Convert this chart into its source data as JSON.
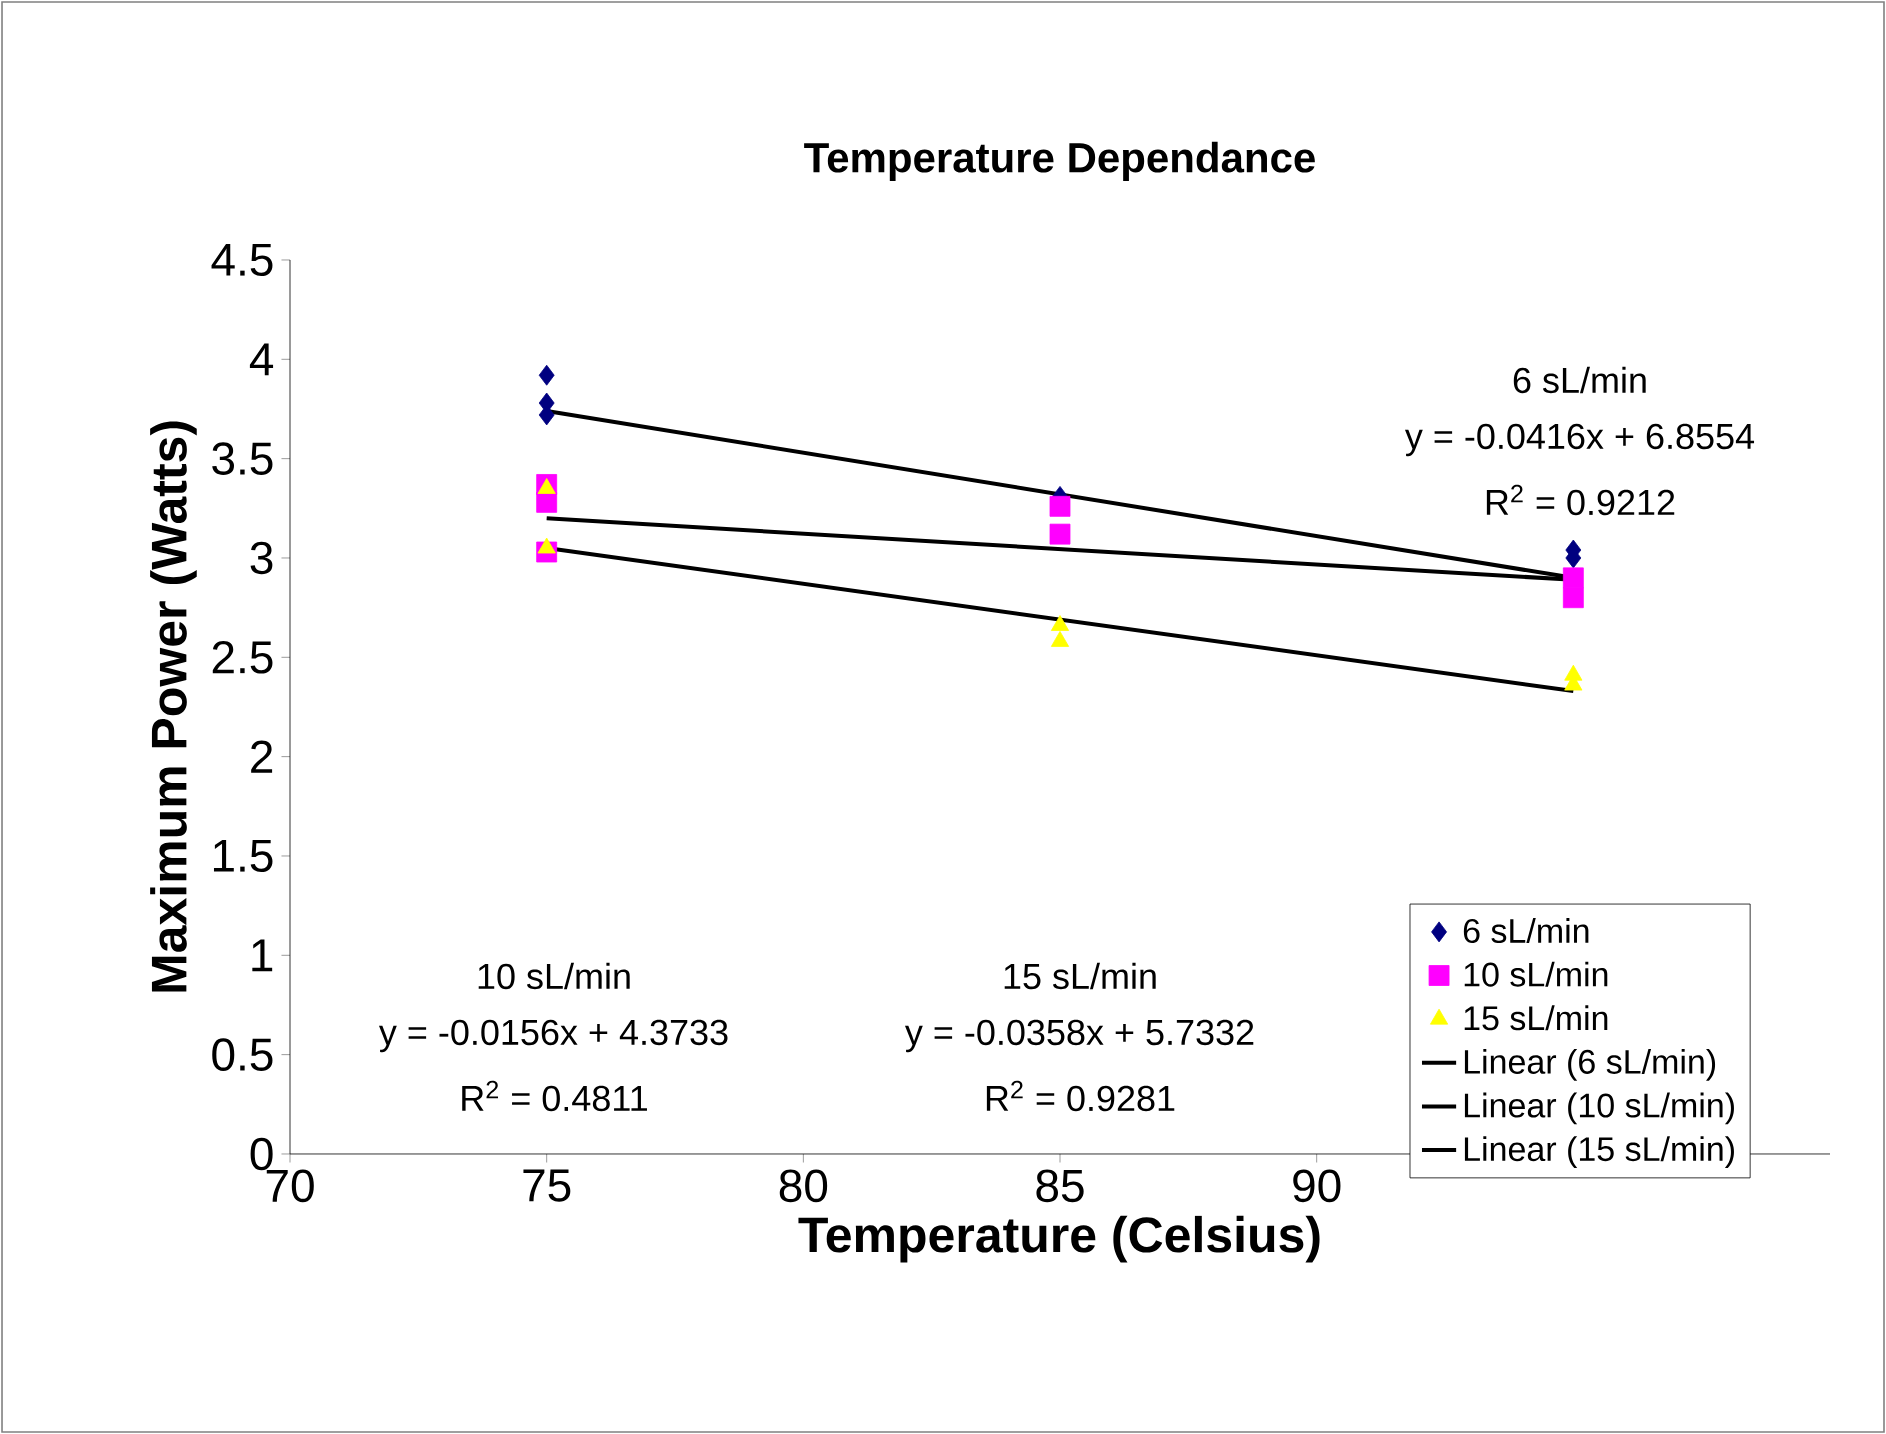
{
  "chart_data": {
    "type": "scatter",
    "title": "Temperature Dependance",
    "xlabel": "Temperature (Celsius)",
    "ylabel": "Maximum Power (Watts)",
    "xlim": [
      70,
      100
    ],
    "xticks": [
      70,
      75,
      80,
      85,
      90
    ],
    "ylim": [
      0,
      4.5
    ],
    "yticks": [
      0,
      0.5,
      1,
      1.5,
      2,
      2.5,
      3,
      3.5,
      4,
      4.5
    ],
    "grid": false,
    "legend": "right",
    "series": [
      {
        "name": "6 sL/min",
        "color": "#000080",
        "marker": "diamond",
        "x": [
          75,
          75,
          75,
          85,
          95,
          95
        ],
        "values": [
          3.92,
          3.78,
          3.72,
          3.31,
          3.04,
          3.0
        ]
      },
      {
        "name": "10 sL/min",
        "color": "#ff00ff",
        "marker": "square",
        "x": [
          75,
          75,
          75,
          85,
          85,
          95,
          95
        ],
        "values": [
          3.37,
          3.28,
          3.03,
          3.26,
          3.12,
          2.9,
          2.8
        ]
      },
      {
        "name": "15 sL/min",
        "color": "#ffff00",
        "marker": "triangle",
        "x": [
          75,
          75,
          85,
          85,
          95,
          95
        ],
        "values": [
          3.35,
          3.05,
          2.66,
          2.58,
          2.41,
          2.36
        ]
      },
      {
        "name": "Linear (6 sL/min)",
        "type": "line",
        "color": "#000000",
        "marker": "none",
        "x": [
          75,
          95
        ],
        "values": [
          3.74,
          2.9
        ]
      },
      {
        "name": "Linear (10 sL/min)",
        "type": "line",
        "color": "#000000",
        "marker": "none",
        "x": [
          75,
          95
        ],
        "values": [
          3.2,
          2.89
        ]
      },
      {
        "name": "Linear (15 sL/min)",
        "type": "line",
        "color": "#000000",
        "marker": "none",
        "x": [
          75,
          95
        ],
        "values": [
          3.05,
          2.33
        ]
      }
    ],
    "annotations": [
      "6 sL/min",
      "y = -0.0416x + 6.8554",
      "R$^{2}$ = 0.9212",
      "10 sL/min",
      "y = -0.0156x + 4.3733",
      "R$^{2}$ = 0.4811",
      "15 sL/min",
      "y = -0.0358x + 5.7332",
      "R$^{2}$ = 0.9281"
    ]
  }
}
